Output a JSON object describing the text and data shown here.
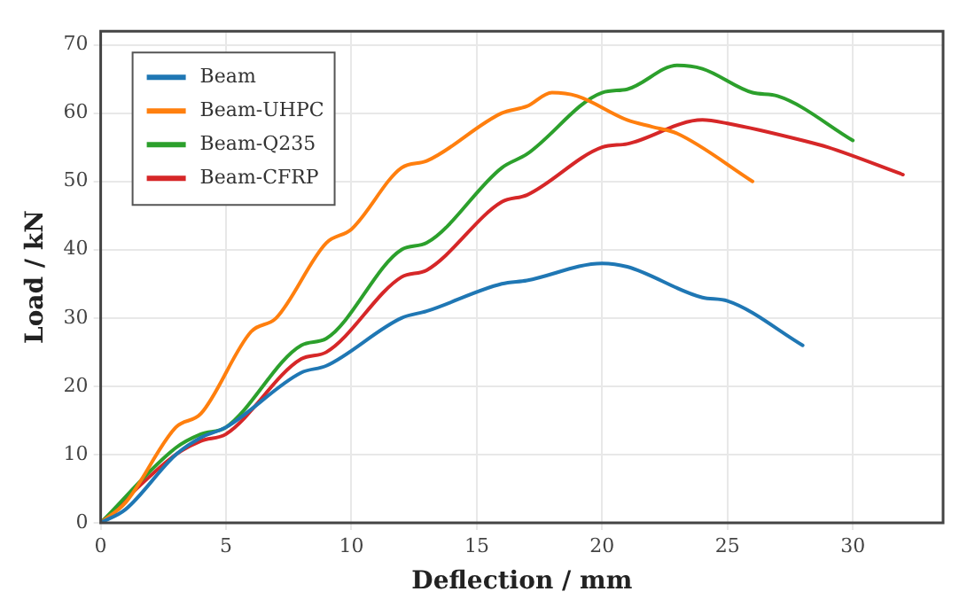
{
  "chart_data": {
    "type": "line",
    "xlabel": "Deflection / mm",
    "ylabel": "Load / kN",
    "xlim": [
      0,
      33.6
    ],
    "ylim": [
      0,
      72
    ],
    "xticks": [
      0,
      5,
      10,
      15,
      20,
      25,
      30
    ],
    "yticks": [
      0,
      10,
      20,
      30,
      40,
      50,
      60,
      70
    ],
    "grid": true,
    "legend": "top left",
    "marker": "none",
    "line_style": "solid",
    "series": [
      {
        "name": "Beam",
        "color": "#1f77b4",
        "x": [
          0,
          1,
          3,
          4,
          5,
          8,
          9,
          12,
          13,
          16,
          17,
          20,
          21,
          24,
          25,
          28
        ],
        "values": [
          0,
          2,
          10,
          12.5,
          14,
          22,
          23,
          30,
          31,
          35,
          35.5,
          38,
          37.5,
          33,
          32.5,
          26
        ]
      },
      {
        "name": "Beam-UHPC",
        "color": "#ff7f0e",
        "x": [
          0,
          1,
          3,
          4,
          6,
          7,
          9,
          10,
          12,
          13,
          16,
          17,
          18,
          19,
          21,
          22,
          23,
          26
        ],
        "values": [
          0,
          3,
          14,
          16,
          28,
          30,
          41,
          43,
          52,
          53,
          60,
          61,
          63,
          62.5,
          59,
          58,
          57,
          50
        ]
      },
      {
        "name": "Beam-Q235",
        "color": "#2ca02c",
        "x": [
          0,
          3,
          4,
          5,
          8,
          9,
          12,
          13,
          16,
          17,
          20,
          21,
          23,
          24,
          26,
          27,
          30
        ],
        "values": [
          0,
          11,
          13,
          14,
          26,
          27,
          40,
          41,
          52,
          54,
          63,
          63.5,
          67,
          66.5,
          63,
          62.5,
          56
        ]
      },
      {
        "name": "Beam-CFRP",
        "color": "#d62728",
        "x": [
          0,
          3,
          4,
          5,
          8,
          9,
          12,
          13,
          16,
          17,
          20,
          21,
          24,
          25,
          28,
          29,
          32
        ],
        "values": [
          0,
          10,
          12,
          13,
          24,
          25,
          36,
          37,
          47,
          48,
          55,
          55.5,
          59,
          58.5,
          56,
          55,
          51
        ]
      }
    ]
  }
}
